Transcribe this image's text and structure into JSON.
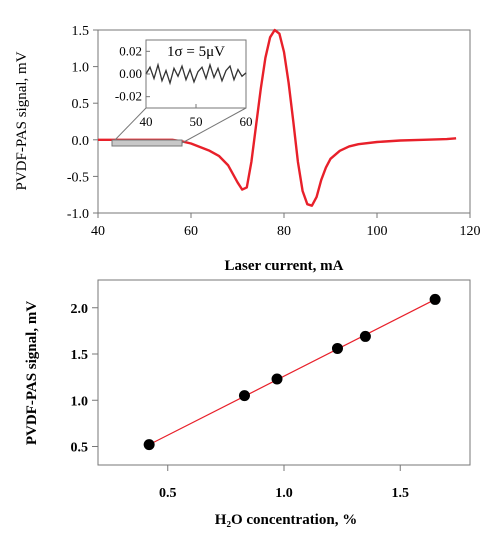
{
  "chart_data": [
    {
      "type": "line",
      "xlabel": "Laser current, mA",
      "ylabel": "PVDF-PAS signal, mV",
      "xlim": [
        40,
        120
      ],
      "ylim": [
        -1.0,
        1.5
      ],
      "xticks": [
        40,
        60,
        80,
        100,
        120
      ],
      "xtick_labels": [
        "40",
        "60",
        "80",
        "100",
        "120"
      ],
      "yticks": [
        -1.0,
        -0.5,
        0.0,
        0.5,
        1.0,
        1.5
      ],
      "ytick_labels": [
        "-1.0",
        "-0.5",
        "0.0",
        "0.5",
        "1.0",
        "1.5"
      ],
      "grid": false,
      "line_color": "#e8202a",
      "series": [
        {
          "x": [
            40,
            44,
            48,
            52,
            56,
            58,
            60,
            62,
            64,
            66,
            68,
            70,
            71,
            72,
            73,
            74,
            75,
            76,
            77,
            78,
            79,
            80,
            81,
            82,
            83,
            84,
            85,
            86,
            87,
            88,
            89,
            90,
            92,
            94,
            96,
            100,
            105,
            110,
            115,
            117
          ],
          "y": [
            0.0,
            0.0,
            0.0,
            0.0,
            0.0,
            -0.02,
            -0.05,
            -0.1,
            -0.15,
            -0.22,
            -0.35,
            -0.58,
            -0.68,
            -0.65,
            -0.3,
            0.2,
            0.7,
            1.12,
            1.4,
            1.5,
            1.45,
            1.2,
            0.78,
            0.25,
            -0.3,
            -0.7,
            -0.88,
            -0.9,
            -0.78,
            -0.55,
            -0.38,
            -0.26,
            -0.15,
            -0.09,
            -0.06,
            -0.03,
            -0.01,
            0.0,
            0.01,
            0.02
          ]
        }
      ],
      "inset": {
        "annotation": "1σ = 5μV",
        "xlim": [
          40,
          60
        ],
        "ylim": [
          -0.03,
          0.03
        ],
        "xticks": [
          40,
          50,
          60
        ],
        "xtick_labels": [
          "40",
          "50",
          "60"
        ],
        "yticks": [
          0.02,
          0.0,
          -0.02
        ],
        "ytick_labels": [
          "0.02",
          "0.00",
          "-0.02"
        ],
        "x": [
          40,
          40.8,
          41.6,
          42.4,
          43.2,
          44,
          44.8,
          45.6,
          46.4,
          47.2,
          48,
          48.8,
          49.6,
          50.4,
          51.2,
          52,
          52.8,
          53.6,
          54.4,
          55.2,
          56,
          56.8,
          57.6,
          58.4,
          59.2,
          60
        ],
        "y": [
          0.0,
          0.006,
          -0.004,
          0.008,
          -0.006,
          0.003,
          -0.008,
          0.005,
          -0.002,
          0.007,
          -0.005,
          0.004,
          -0.007,
          0.002,
          0.006,
          -0.004,
          0.008,
          -0.003,
          0.005,
          -0.006,
          0.003,
          0.007,
          -0.005,
          0.004,
          -0.002,
          0.001
        ]
      }
    },
    {
      "type": "scatter",
      "xlabel": "H₂O concentration, %",
      "ylabel": "PVDF-PAS signal, mV",
      "xlim": [
        0.2,
        1.8
      ],
      "ylim": [
        0.3,
        2.3
      ],
      "xticks": [
        0.5,
        1.0,
        1.5
      ],
      "xtick_labels": [
        "0.5",
        "1.0",
        "1.5"
      ],
      "yticks": [
        0.5,
        1.0,
        1.5,
        2.0
      ],
      "ytick_labels": [
        "0.5",
        "1.0",
        "1.5",
        "2.0"
      ],
      "grid": false,
      "fit_line_color": "#e8202a",
      "points": {
        "x": [
          0.42,
          0.83,
          0.97,
          1.23,
          1.35,
          1.65
        ],
        "y": [
          0.52,
          1.05,
          1.23,
          1.56,
          1.69,
          2.09
        ]
      },
      "fit_line": {
        "x": [
          0.42,
          1.65
        ],
        "y": [
          0.52,
          2.09
        ]
      }
    }
  ]
}
